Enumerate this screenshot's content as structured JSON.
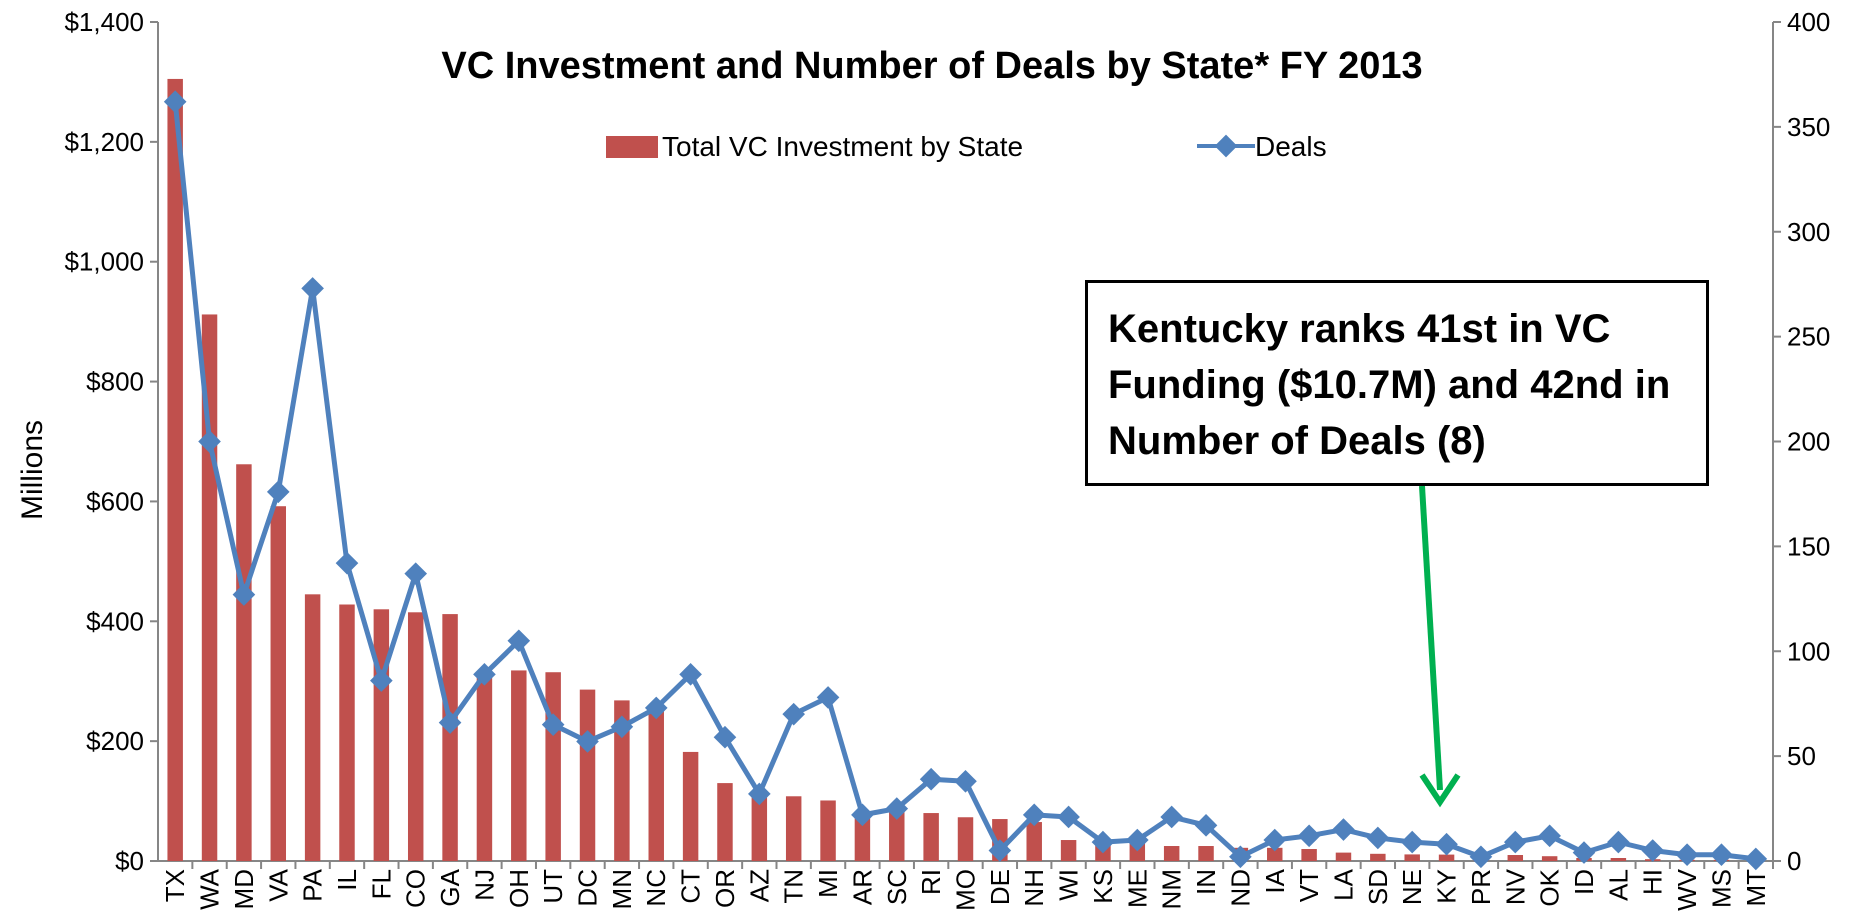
{
  "chart_data": {
    "type": "bar",
    "title": "VC Investment and Number of Deals by State* FY 2013",
    "ylabel": "Millions",
    "ylim": [
      0,
      1400
    ],
    "y2lim": [
      0,
      400
    ],
    "yticks": [
      "$0",
      "$200",
      "$400",
      "$600",
      "$800",
      "$1,000",
      "$1,200",
      "$1,400"
    ],
    "y2ticks": [
      "0",
      "50",
      "100",
      "150",
      "200",
      "250",
      "300",
      "350",
      "400"
    ],
    "legend_position": "top-center",
    "categories": [
      "TX",
      "WA",
      "MD",
      "VA",
      "PA",
      "IL",
      "FL",
      "CO",
      "GA",
      "NJ",
      "OH",
      "UT",
      "DC",
      "MN",
      "NC",
      "CT",
      "OR",
      "AZ",
      "TN",
      "MI",
      "AR",
      "SC",
      "RI",
      "MO",
      "DE",
      "NH",
      "WI",
      "KS",
      "ME",
      "NM",
      "IN",
      "ND",
      "IA",
      "VT",
      "LA",
      "SD",
      "NE",
      "KY",
      "PR",
      "NV",
      "OK",
      "ID",
      "AL",
      "HI",
      "WV",
      "MS",
      "MT"
    ],
    "series": [
      {
        "name": "Total VC Investment by State",
        "type": "bar",
        "color": "#C0504D",
        "axis": "left",
        "values": [
          1305,
          912,
          662,
          592,
          445,
          428,
          420,
          415,
          412,
          310,
          318,
          315,
          286,
          268,
          250,
          182,
          130,
          112,
          108,
          101,
          82,
          85,
          80,
          73,
          70,
          65,
          35,
          33,
          30,
          25,
          25,
          22,
          22,
          20,
          14,
          12,
          11,
          10.7,
          3,
          10,
          8,
          5,
          5,
          3,
          2,
          2,
          1
        ]
      },
      {
        "name": "Deals",
        "type": "line",
        "color": "#4F81BD",
        "axis": "right",
        "values": [
          362,
          200,
          127,
          176,
          273,
          142,
          86,
          137,
          66,
          89,
          105,
          65,
          57,
          64,
          73,
          89,
          59,
          32,
          70,
          78,
          22,
          25,
          39,
          38,
          5,
          22,
          21,
          9,
          10,
          21,
          17,
          2,
          10,
          12,
          15,
          11,
          9,
          8,
          2,
          9,
          12,
          4,
          9,
          5,
          3,
          3,
          1
        ]
      }
    ],
    "annotation": {
      "text": "Kentucky ranks 41st in VC Funding ($10.7M) and 42nd in Number of Deals (8)",
      "arrow_color": "#00B050",
      "points_to": "KY"
    }
  }
}
